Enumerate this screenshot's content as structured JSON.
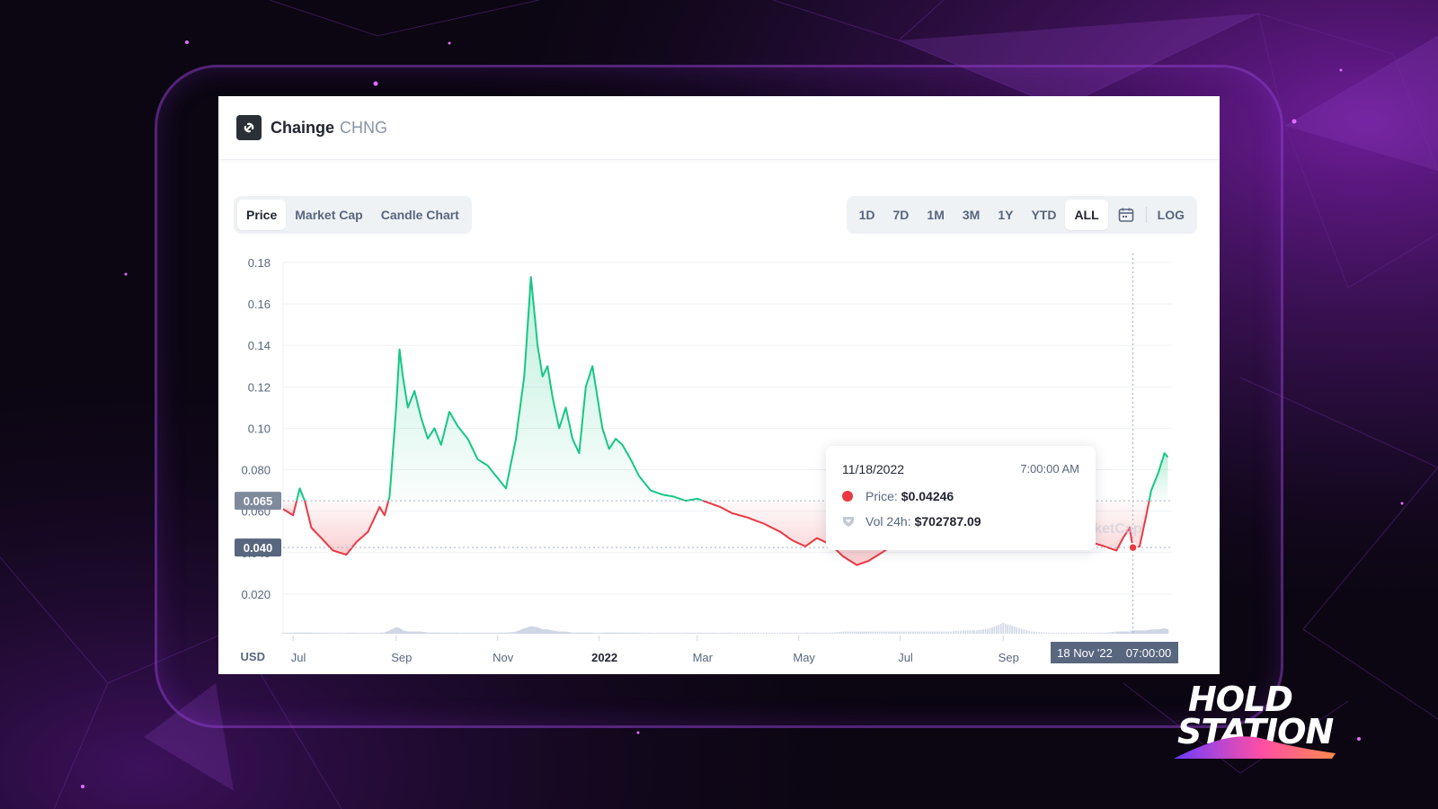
{
  "coin": {
    "name": "Chainge",
    "symbol": "CHNG"
  },
  "view_tabs": [
    {
      "label": "Price",
      "active": true
    },
    {
      "label": "Market Cap",
      "active": false
    },
    {
      "label": "Candle Chart",
      "active": false
    }
  ],
  "range_tabs": [
    {
      "label": "1D",
      "active": false
    },
    {
      "label": "7D",
      "active": false
    },
    {
      "label": "1M",
      "active": false
    },
    {
      "label": "3M",
      "active": false
    },
    {
      "label": "1Y",
      "active": false
    },
    {
      "label": "YTD",
      "active": false
    },
    {
      "label": "ALL",
      "active": true
    }
  ],
  "log_label": "LOG",
  "calendar_icon": "calendar-icon",
  "tooltip": {
    "date": "11/18/2022",
    "time": "7:00:00 AM",
    "price_label": "Price:",
    "price_value": "$0.04246",
    "vol_label": "Vol 24h:",
    "vol_value": "$702787.09"
  },
  "cursor_label": {
    "date": "18 Nov '22",
    "time": "07:00:00"
  },
  "watermark": "rketCap",
  "brand": {
    "line1": "HOLD",
    "line2": "STATION"
  },
  "colors": {
    "up": "#16c784",
    "down": "#ea3943",
    "accent": "#8b2be2"
  },
  "chart_data": {
    "type": "line",
    "currency_label": "USD",
    "y_ticks": [
      "0.020",
      "0.040",
      "0.060",
      "0.080",
      "0.10",
      "0.12",
      "0.14",
      "0.16",
      "0.18"
    ],
    "ylim": [
      0,
      0.18
    ],
    "x_tick_labels": [
      "Jul",
      "Sep",
      "Nov",
      "2022",
      "Mar",
      "May",
      "Jul",
      "Sep"
    ],
    "x_tick_dates": [
      "2021-07-01",
      "2021-09-01",
      "2021-11-01",
      "2022-01-01",
      "2022-03-01",
      "2022-05-01",
      "2022-07-01",
      "2022-09-01"
    ],
    "x_range": [
      "2021-06-25",
      "2022-12-12"
    ],
    "baseline_price": 0.065,
    "baseline_label": "0.065",
    "hover_price": 0.04246,
    "hover_price_label": "0.040",
    "hover_date": "2022-11-18",
    "series": [
      {
        "x": [
          "2021-06-25",
          "2021-07-01",
          "2021-07-05",
          "2021-07-08",
          "2021-07-12",
          "2021-07-18",
          "2021-07-25",
          "2021-08-02",
          "2021-08-08",
          "2021-08-15",
          "2021-08-22",
          "2021-08-25",
          "2021-08-28",
          "2021-09-01",
          "2021-09-03",
          "2021-09-05",
          "2021-09-08",
          "2021-09-12",
          "2021-09-16",
          "2021-09-20",
          "2021-09-24",
          "2021-09-28",
          "2021-10-03",
          "2021-10-08",
          "2021-10-14",
          "2021-10-20",
          "2021-10-26",
          "2021-11-01",
          "2021-11-06",
          "2021-11-12",
          "2021-11-17",
          "2021-11-21",
          "2021-11-25",
          "2021-11-28",
          "2021-12-01",
          "2021-12-04",
          "2021-12-08",
          "2021-12-12",
          "2021-12-16",
          "2021-12-20",
          "2021-12-24",
          "2021-12-28",
          "2022-01-03",
          "2022-01-07",
          "2022-01-11",
          "2022-01-15",
          "2022-01-20",
          "2022-01-25",
          "2022-02-01",
          "2022-02-08",
          "2022-02-15",
          "2022-02-22",
          "2022-03-01",
          "2022-03-08",
          "2022-03-15",
          "2022-03-22",
          "2022-03-31",
          "2022-04-10",
          "2022-04-20",
          "2022-04-27",
          "2022-05-05",
          "2022-05-12",
          "2022-05-20",
          "2022-05-28",
          "2022-06-05",
          "2022-06-12",
          "2022-06-20",
          "2022-06-28",
          "2022-07-06",
          "2022-07-14",
          "2022-07-22",
          "2022-07-30",
          "2022-08-08",
          "2022-08-16",
          "2022-08-24",
          "2022-09-01",
          "2022-09-09",
          "2022-09-18",
          "2022-09-27",
          "2022-10-06",
          "2022-10-15",
          "2022-10-24",
          "2022-11-01",
          "2022-11-08",
          "2022-11-12",
          "2022-11-16",
          "2022-11-18",
          "2022-11-22",
          "2022-11-26",
          "2022-11-29",
          "2022-12-03",
          "2022-12-07",
          "2022-12-09"
        ],
        "y": [
          0.061,
          0.058,
          0.071,
          0.065,
          0.052,
          0.047,
          0.041,
          0.039,
          0.045,
          0.05,
          0.062,
          0.058,
          0.067,
          0.11,
          0.138,
          0.125,
          0.11,
          0.118,
          0.105,
          0.095,
          0.1,
          0.092,
          0.108,
          0.101,
          0.095,
          0.085,
          0.082,
          0.076,
          0.071,
          0.095,
          0.125,
          0.173,
          0.14,
          0.125,
          0.13,
          0.115,
          0.1,
          0.11,
          0.095,
          0.088,
          0.12,
          0.13,
          0.1,
          0.09,
          0.095,
          0.092,
          0.085,
          0.077,
          0.07,
          0.068,
          0.067,
          0.065,
          0.066,
          0.064,
          0.062,
          0.059,
          0.057,
          0.054,
          0.05,
          0.046,
          0.043,
          0.047,
          0.044,
          0.038,
          0.034,
          0.036,
          0.04,
          0.044,
          0.048,
          0.05,
          0.045,
          0.047,
          0.043,
          0.046,
          0.051,
          0.048,
          0.044,
          0.042,
          0.043,
          0.044,
          0.046,
          0.045,
          0.043,
          0.041,
          0.047,
          0.052,
          0.042,
          0.043,
          0.058,
          0.07,
          0.078,
          0.088,
          0.086
        ],
        "volume": [
          0.01,
          0.01,
          0.01,
          0.01,
          0.01,
          0.01,
          0.01,
          0.01,
          0.01,
          0.01,
          0.01,
          0.01,
          0.03,
          0.06,
          0.05,
          0.03,
          0.02,
          0.02,
          0.02,
          0.01,
          0.01,
          0.01,
          0.01,
          0.01,
          0.01,
          0.01,
          0.01,
          0.01,
          0.01,
          0.02,
          0.05,
          0.07,
          0.06,
          0.04,
          0.04,
          0.03,
          0.02,
          0.02,
          0.01,
          0.01,
          0.01,
          0.01,
          0.01,
          0.01,
          0.01,
          0.01,
          0.01,
          0.01,
          0.01,
          0.01,
          0.01,
          0.01,
          0.01,
          0.01,
          0.01,
          0.01,
          0.01,
          0.01,
          0.01,
          0.01,
          0.01,
          0.01,
          0.01,
          0.02,
          0.02,
          0.02,
          0.02,
          0.02,
          0.02,
          0.02,
          0.02,
          0.02,
          0.03,
          0.03,
          0.05,
          0.1,
          0.06,
          0.02,
          0.01,
          0.01,
          0.01,
          0.01,
          0.01,
          0.02,
          0.02,
          0.02,
          0.03,
          0.03,
          0.03,
          0.04,
          0.04,
          0.05,
          0.04
        ]
      }
    ]
  }
}
